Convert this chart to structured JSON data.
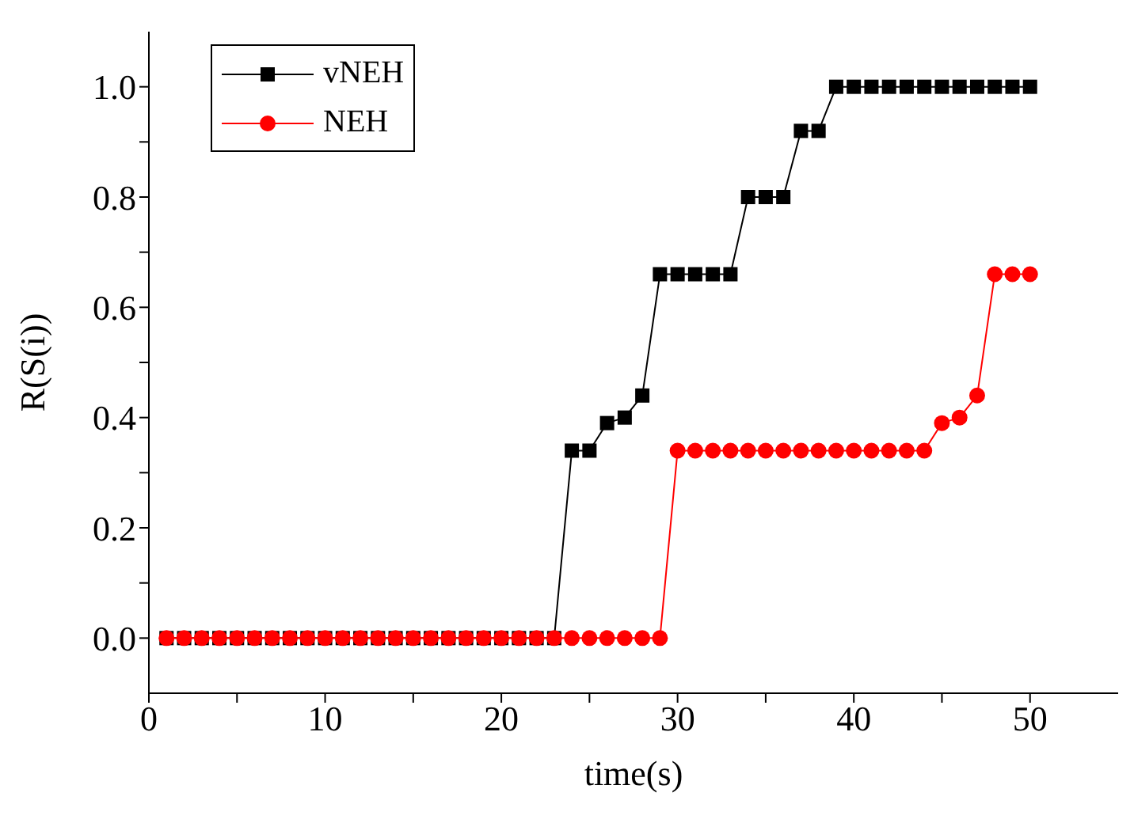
{
  "chart_data": {
    "type": "line",
    "xlabel": "time(s)",
    "ylabel": "R(S(i))",
    "x": [
      1,
      2,
      3,
      4,
      5,
      6,
      7,
      8,
      9,
      10,
      11,
      12,
      13,
      14,
      15,
      16,
      17,
      18,
      19,
      20,
      21,
      22,
      23,
      24,
      25,
      26,
      27,
      28,
      29,
      30,
      31,
      32,
      33,
      34,
      35,
      36,
      37,
      38,
      39,
      40,
      41,
      42,
      43,
      44,
      45,
      46,
      47,
      48,
      49,
      50
    ],
    "series": [
      {
        "name": "vNEH",
        "color": "#000000",
        "marker": "square",
        "values": [
          0,
          0,
          0,
          0,
          0,
          0,
          0,
          0,
          0,
          0,
          0,
          0,
          0,
          0,
          0,
          0,
          0,
          0,
          0,
          0,
          0,
          0,
          0,
          0.34,
          0.34,
          0.39,
          0.4,
          0.44,
          0.66,
          0.66,
          0.66,
          0.66,
          0.66,
          0.8,
          0.8,
          0.8,
          0.92,
          0.92,
          1,
          1,
          1,
          1,
          1,
          1,
          1,
          1,
          1,
          1,
          1,
          1
        ]
      },
      {
        "name": "NEH",
        "color": "#ff0000",
        "marker": "circle",
        "values": [
          0,
          0,
          0,
          0,
          0,
          0,
          0,
          0,
          0,
          0,
          0,
          0,
          0,
          0,
          0,
          0,
          0,
          0,
          0,
          0,
          0,
          0,
          0,
          0,
          0,
          0,
          0,
          0,
          0,
          0.34,
          0.34,
          0.34,
          0.34,
          0.34,
          0.34,
          0.34,
          0.34,
          0.34,
          0.34,
          0.34,
          0.34,
          0.34,
          0.34,
          0.34,
          0.39,
          0.4,
          0.44,
          0.66,
          0.66,
          0.66
        ]
      }
    ],
    "xlim": [
      0,
      55
    ],
    "xticks": [
      0,
      {
        "value": 5,
        "label": null
      },
      10,
      {
        "value": 15,
        "label": null
      },
      20,
      {
        "value": 25,
        "label": null
      },
      30,
      {
        "value": 35,
        "label": null
      },
      40,
      {
        "value": 45,
        "label": null
      },
      50
    ],
    "ylim": [
      -0.1,
      1.1
    ],
    "yticks": [
      {
        "value": 0,
        "label": "0.0"
      },
      {
        "value": 0.1,
        "label": null
      },
      {
        "value": 0.2,
        "label": "0.2"
      },
      {
        "value": 0.3,
        "label": null
      },
      {
        "value": 0.4,
        "label": "0.4"
      },
      {
        "value": 0.5,
        "label": null
      },
      {
        "value": 0.6,
        "label": "0.6"
      },
      {
        "value": 0.7,
        "label": null
      },
      {
        "value": 0.8,
        "label": "0.8"
      },
      {
        "value": 0.9,
        "label": null
      },
      {
        "value": 1,
        "label": "1.0"
      }
    ],
    "grid": false,
    "legend": "top left",
    "line_style": "solid"
  }
}
